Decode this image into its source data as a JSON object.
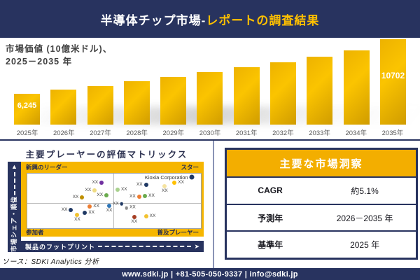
{
  "header": {
    "title_white": "半導体チップ市場-",
    "title_gold": "レポートの調査結果"
  },
  "chart_section": {
    "title_line1": "市場価値 (10億米ドル)、",
    "title_line2": "2025－2035 年"
  },
  "chart_data": [
    {
      "type": "bar",
      "title": "市場価値 (10億米ドル)、2025－2035 年",
      "categories": [
        "2025年",
        "2026年",
        "2027年",
        "2028年",
        "2029年",
        "2030年",
        "2031年",
        "2032年",
        "2033年",
        "2034年",
        "2035年"
      ],
      "values": [
        6245,
        6564,
        6898,
        7250,
        7620,
        8008,
        8417,
        8846,
        9297,
        9771,
        10702
      ],
      "bar_labels": [
        "6,245",
        "",
        "",
        "",
        "",
        "",
        "",
        "",
        "",
        "",
        "10702"
      ],
      "ylabel": "10億米ドル",
      "bar_color": "#F0B000",
      "note": "only first and last bars carry data labels; intermediate values estimated from ~5.1% CAGR bar heights"
    },
    {
      "type": "scatter",
      "title": "主要プレーヤーの評価マトリックス",
      "y_axis_label": "市場シェア・順位",
      "x_axis_label": "製品のフットプリント",
      "quadrants": {
        "top_left": "新興のリーダー",
        "top_right": "スター",
        "bottom_left": "参加者",
        "bottom_right": "普及プレーヤー"
      },
      "points": [
        {
          "label": "XX",
          "color": "#7030A0",
          "x": 42.8,
          "y": 17,
          "side": "left"
        },
        {
          "label": "XX",
          "color": "#F0DC82",
          "x": 38.8,
          "y": 31,
          "side": "left"
        },
        {
          "label": "XX",
          "color": "#BF9000",
          "x": 31.6,
          "y": 43,
          "side": "left"
        },
        {
          "label": "XX",
          "color": "#6AAB4E",
          "x": 45.6,
          "y": 39.5,
          "side": "left"
        },
        {
          "label": "XX",
          "color": "#ED7D31",
          "x": 36,
          "y": 60,
          "side": "right"
        },
        {
          "label": "XX",
          "color": "#2E75B6",
          "x": 47.2,
          "y": 58.5,
          "side": "below"
        },
        {
          "label": "XX",
          "color": "#1F3864",
          "x": 25.2,
          "y": 66.5,
          "side": "left"
        },
        {
          "label": "XX",
          "color": "#1F3864",
          "x": 33.2,
          "y": 71.5,
          "side": "right"
        },
        {
          "label": "XX",
          "color": "#F2C230",
          "x": 28.8,
          "y": 75.5,
          "side": "below"
        },
        {
          "label": "XX",
          "color": "#A9D18E",
          "x": 52,
          "y": 29.5,
          "side": "right"
        },
        {
          "label": "XX",
          "color": "#1F3864",
          "x": 68.4,
          "y": 20,
          "side": "left"
        },
        {
          "label": "XX",
          "color": "#F5E3A0",
          "x": 79.2,
          "y": 23.5,
          "side": "below"
        },
        {
          "label": "XX",
          "color": "#FFC000",
          "x": 84.8,
          "y": 17,
          "side": "right"
        },
        {
          "label": "XX",
          "color": "#ED7D31",
          "x": 64.4,
          "y": 42.5,
          "side": "left"
        },
        {
          "label": "XX",
          "color": "#6AAB4E",
          "x": 67.8,
          "y": 41.5,
          "side": "right"
        },
        {
          "label": "Kioxia Corporation",
          "color": "#1F3864",
          "x": 94.8,
          "y": 7,
          "side": "left",
          "big_label": true
        },
        {
          "label": "XX",
          "color": "#1F3864",
          "x": 54.4,
          "y": 55.5,
          "side": "left",
          "small": true
        },
        {
          "label": "XX",
          "color": "#8C8C8C",
          "x": 57.2,
          "y": 63,
          "side": "right",
          "small": true
        },
        {
          "label": "XX",
          "color": "#A63E24",
          "x": 61.6,
          "y": 79,
          "side": "below"
        },
        {
          "label": "XX",
          "color": "#F2C230",
          "x": 68.4,
          "y": 78,
          "side": "right"
        }
      ]
    }
  ],
  "insights": {
    "title": "主要な市場洞察",
    "rows": [
      {
        "label": "CAGR",
        "value": "約5.1%"
      },
      {
        "label": "予測年",
        "value": "2026－2035 年"
      },
      {
        "label": "基準年",
        "value": "2025 年"
      }
    ]
  },
  "source": "ソース：SDKI Analytics 分析",
  "footer": "www.sdki.jp | +81-505-050-9337 | info@sdki.jp",
  "colors": {
    "navy": "#28335F",
    "gold": "#F6B600",
    "bar_gold": "#F0B000",
    "header_text_gold": "#FFC000",
    "chart_text": "#3F3F3F",
    "axis_text": "#595959"
  }
}
